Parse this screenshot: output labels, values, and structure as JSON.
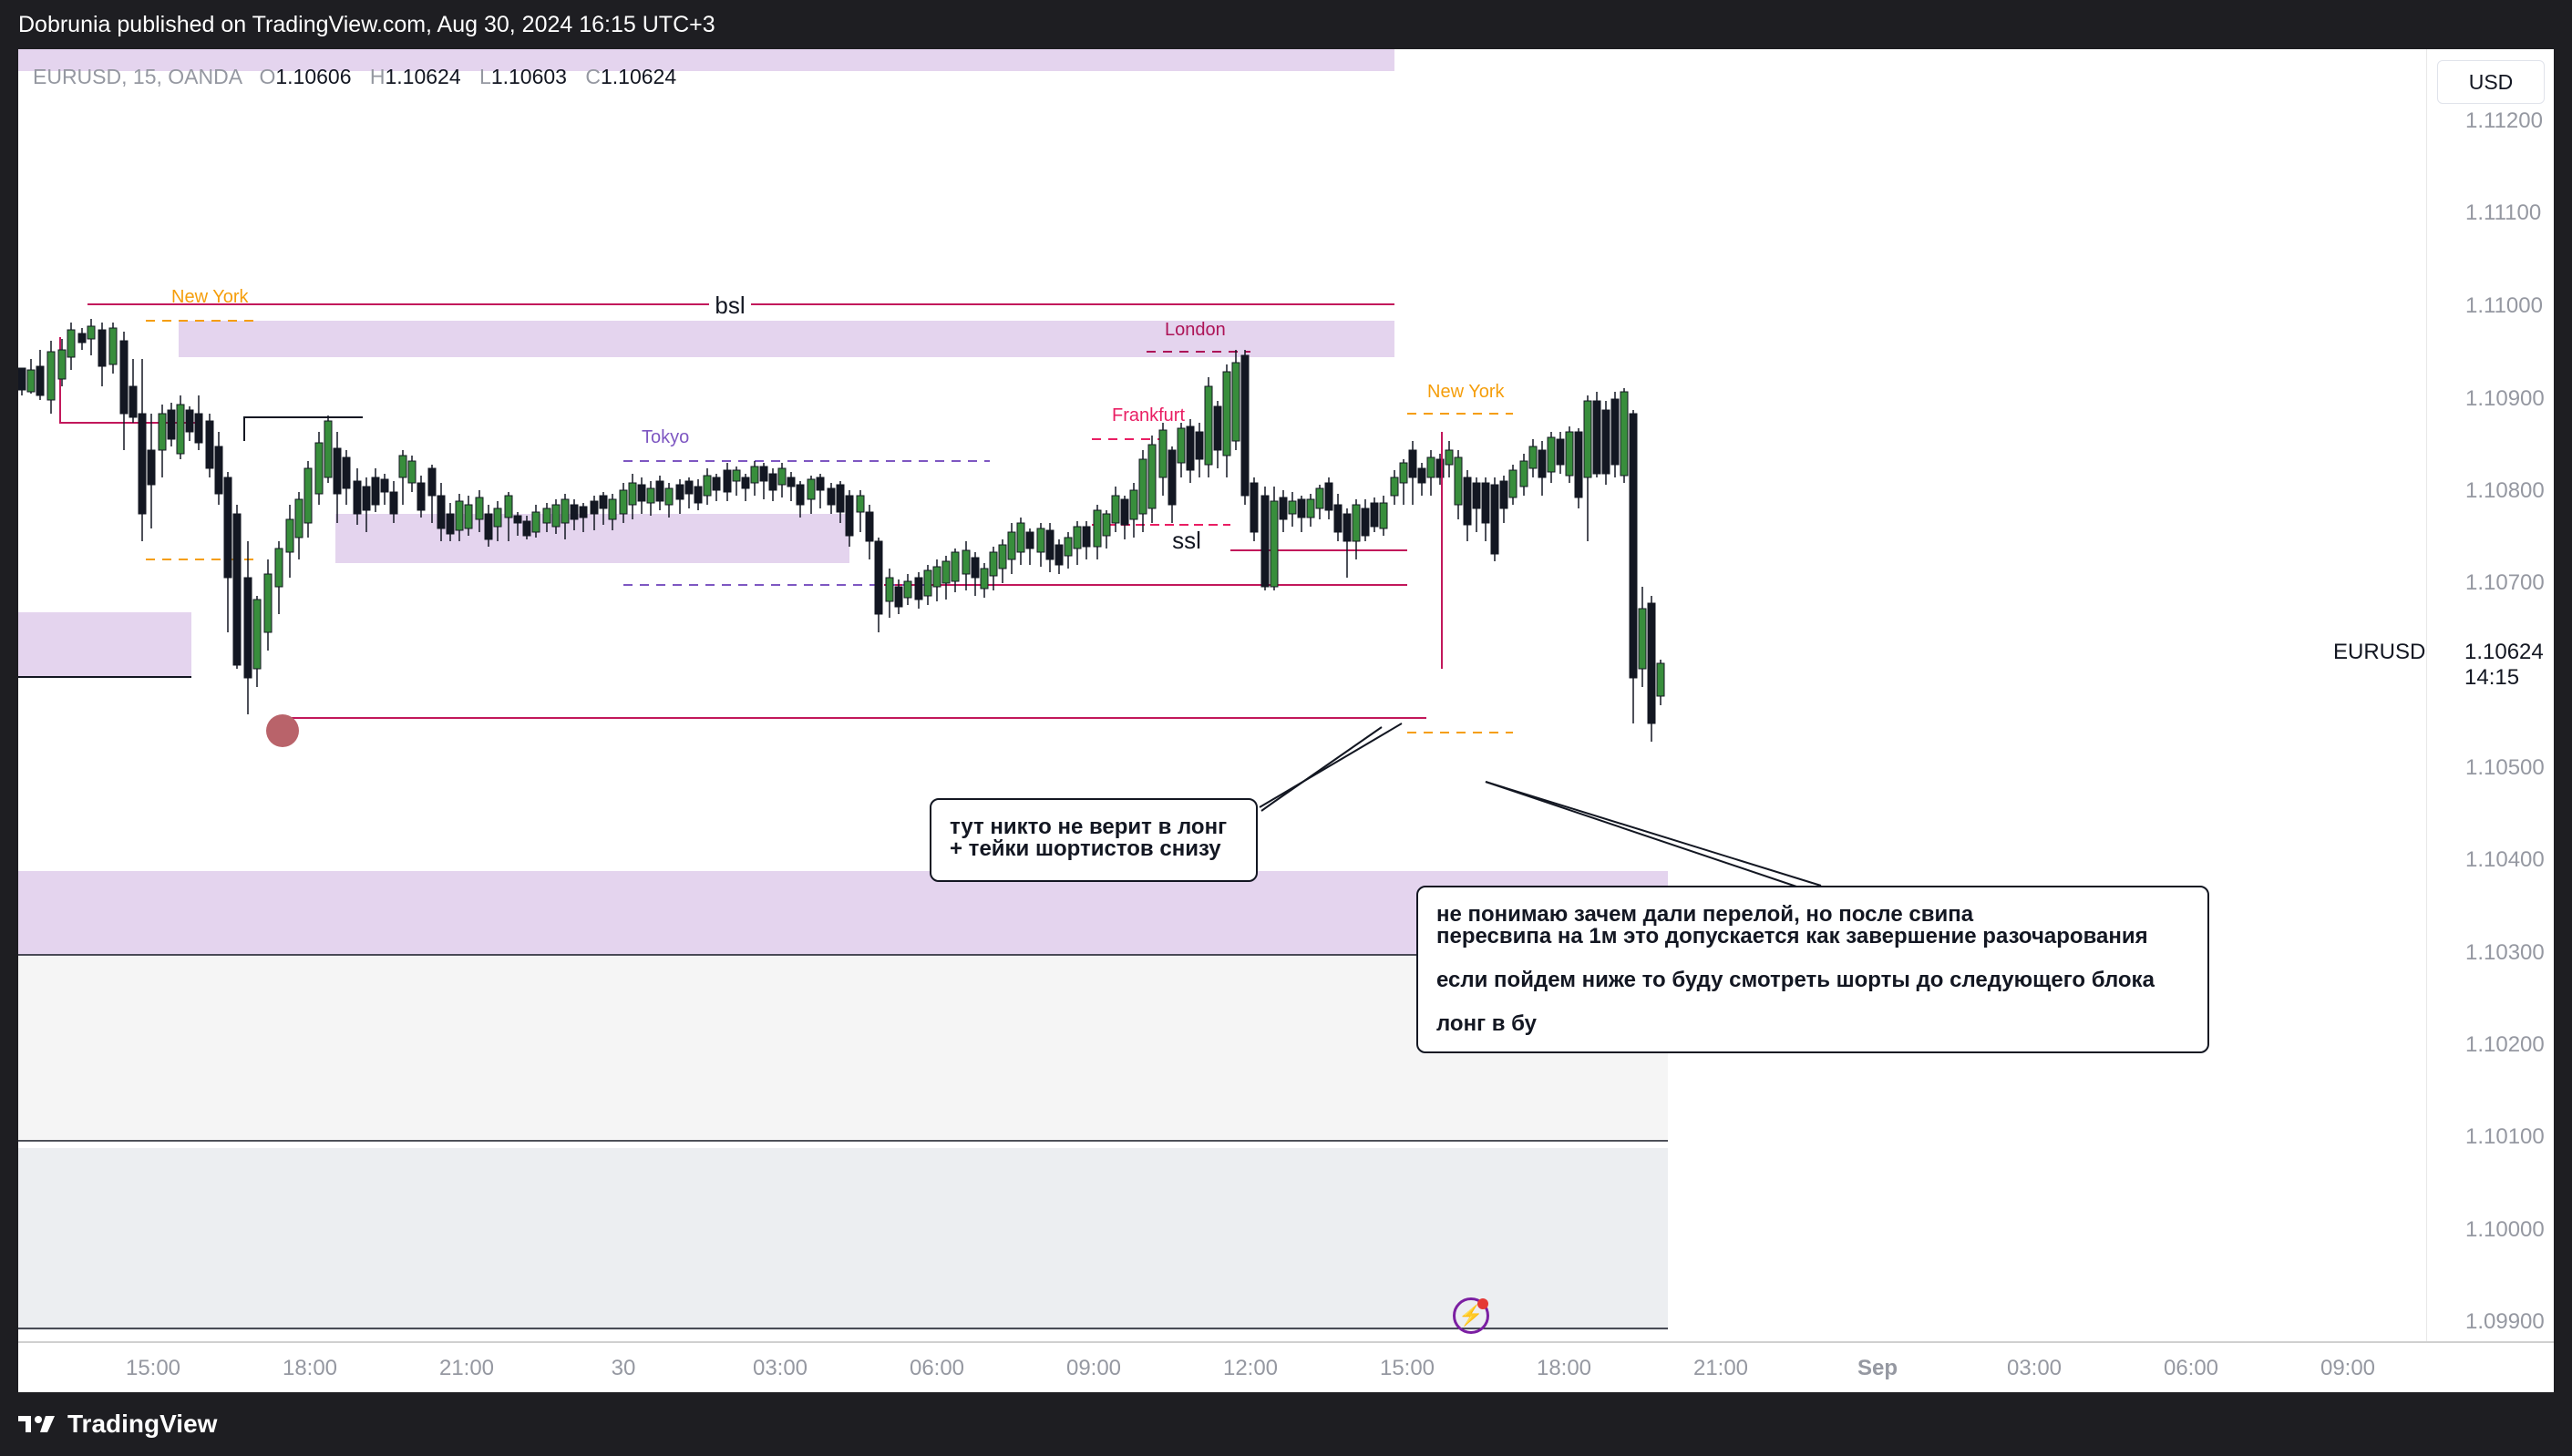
{
  "header": {
    "publisher_text": "Dobrunia published on TradingView.com, Aug 30, 2024 16:15 UTC+3"
  },
  "legend": {
    "symbol": "EURUSD, 15, OANDA",
    "open_key": "O",
    "open": "1.10606",
    "high_key": "H",
    "high": "1.10624",
    "low_key": "L",
    "low": "1.10603",
    "close_key": "C",
    "close": "1.10624"
  },
  "currency_button": "USD",
  "price_axis": {
    "ticks": [
      "1.11200",
      "1.11100",
      "1.11000",
      "1.10900",
      "1.10800",
      "1.10700",
      "1.10500",
      "1.10400",
      "1.10300",
      "1.10200",
      "1.10100",
      "1.10000",
      "1.09900"
    ],
    "symbol_label": "EURUSD",
    "last_price": "1.10624",
    "countdown": "14:15"
  },
  "time_axis": {
    "ticks": [
      "15:00",
      "18:00",
      "21:00",
      "30",
      "03:00",
      "06:00",
      "09:00",
      "12:00",
      "15:00",
      "18:00",
      "21:00",
      "Sep",
      "03:00",
      "06:00",
      "09:00"
    ]
  },
  "annotations": {
    "bsl": "bsl",
    "ssl": "ssl",
    "sessions": {
      "new_york_1": "New York",
      "tokyo": "Tokyo",
      "london": "London",
      "frankfurt": "Frankfurt",
      "new_york_2": "New York"
    },
    "note_left": {
      "line1": "тут никто не верит в лонг",
      "line2": "+ тейки шортистов снизу"
    },
    "note_right": {
      "line1": "не понимаю зачем дали перелой, но после свипа",
      "line2": "пересвипа на 1м это допускается как завершение разочарования",
      "line3": "если пойдем ниже то буду смотреть шорты до следующего блока",
      "line4": "лонг в бу"
    }
  },
  "footer": {
    "brand": "TradingView"
  },
  "colors": {
    "up_candle": "#388e3c",
    "down_candle": "#131722",
    "zone_purple": "#e4d4ee",
    "liquidity_red": "#c2185b",
    "ny_orange": "#f59e0b",
    "tokyo_purple": "#7e57c2",
    "london_magenta": "#ad1457",
    "frankfurt_pink": "#e91e63",
    "background": "#ffffff",
    "frame": "#1e1e22"
  },
  "chart_data": {
    "type": "candlestick",
    "symbol": "EURUSD",
    "timeframe": "15",
    "broker": "OANDA",
    "ylim": [
      1.0988,
      1.1124
    ],
    "zones": [
      {
        "kind": "supply",
        "price_low": 1.1095,
        "price_high": 1.1099
      },
      {
        "kind": "demand",
        "price_low": 1.10725,
        "price_high": 1.10775
      },
      {
        "kind": "demand",
        "price_low": 1.1061,
        "price_high": 1.1068
      },
      {
        "kind": "demand",
        "price_low": 1.10295,
        "price_high": 1.10385
      }
    ],
    "levels": [
      {
        "label": "bsl",
        "price": 1.11
      },
      {
        "label": "ssl",
        "price": 1.10735
      },
      {
        "label": "",
        "price": 1.10555
      },
      {
        "label": "",
        "price": 1.107
      }
    ]
  }
}
